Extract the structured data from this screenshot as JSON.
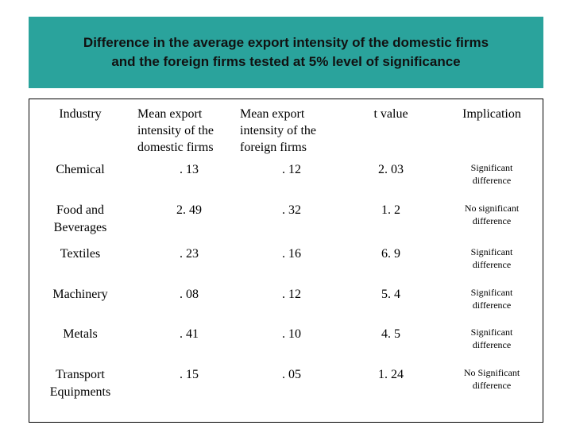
{
  "title": {
    "line1": "Difference in the average export intensity of the domestic firms",
    "line2": "and the foreign firms tested at 5% level of significance"
  },
  "table": {
    "headers": {
      "industry": "Industry",
      "domestic": [
        "Mean export",
        "intensity of the",
        "domestic firms"
      ],
      "foreign": [
        "Mean export",
        "intensity of the",
        "foreign firms"
      ],
      "tvalue": "t value",
      "implication": "Implication"
    },
    "rows": [
      {
        "industry": [
          "Chemical"
        ],
        "domestic": ". 13",
        "foreign": ". 12",
        "t": "2. 03",
        "implication": [
          "Significant",
          "difference"
        ]
      },
      {
        "industry": [
          "Food and",
          "Beverages"
        ],
        "domestic": "2. 49",
        "foreign": ". 32",
        "t": "1. 2",
        "implication": [
          "No significant",
          "difference"
        ]
      },
      {
        "industry": [
          "Textiles"
        ],
        "domestic": ". 23",
        "foreign": ". 16",
        "t": "6. 9",
        "implication": [
          "Significant",
          "difference"
        ]
      },
      {
        "industry": [
          "Machinery"
        ],
        "domestic": ". 08",
        "foreign": ". 12",
        "t": "5. 4",
        "implication": [
          "Significant",
          "difference"
        ]
      },
      {
        "industry": [
          "Metals"
        ],
        "domestic": ". 41",
        "foreign": ". 10",
        "t": "4. 5",
        "implication": [
          "Significant",
          "difference"
        ]
      },
      {
        "industry": [
          "Transport",
          "Equipments"
        ],
        "domestic": ". 15",
        "foreign": ". 05",
        "t": "1. 24",
        "implication": [
          "No Significant",
          "difference"
        ]
      }
    ]
  }
}
